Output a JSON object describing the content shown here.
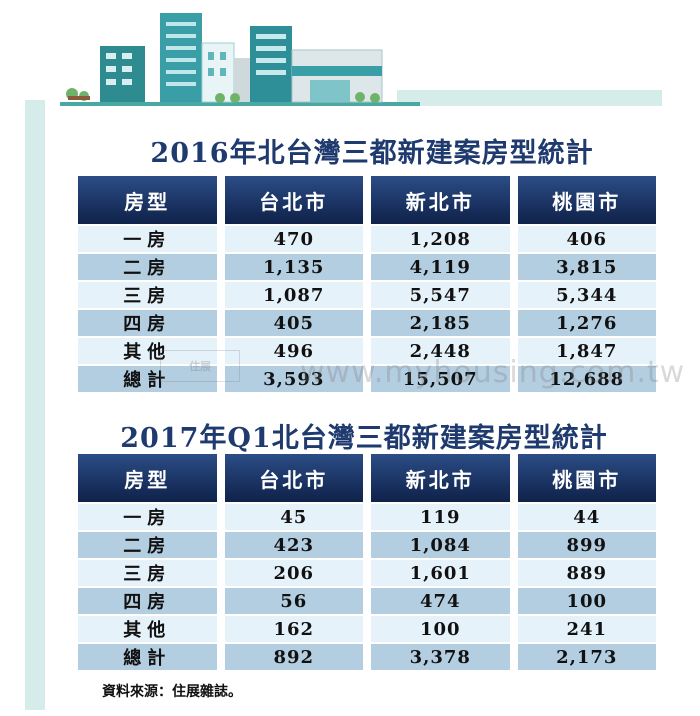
{
  "colors": {
    "header": "#1d3768",
    "title": "#1f3a6e",
    "row_light": "#e6f2fa",
    "row_dark": "#b4cee1",
    "accent_bar": "#d5ecea"
  },
  "table1": {
    "title": "2016年北台灣三都新建案房型統計",
    "headers": [
      "房型",
      "台北市",
      "新北市",
      "桃園市"
    ],
    "rows": [
      [
        "一房",
        "470",
        "1,208",
        "406"
      ],
      [
        "二房",
        "1,135",
        "4,119",
        "3,815"
      ],
      [
        "三房",
        "1,087",
        "5,547",
        "5,344"
      ],
      [
        "四房",
        "405",
        "2,185",
        "1,276"
      ],
      [
        "其他",
        "496",
        "2,448",
        "1,847"
      ],
      [
        "總計",
        "3,593",
        "15,507",
        "12,688"
      ]
    ]
  },
  "table2": {
    "title": "2017年Q1北台灣三都新建案房型統計",
    "headers": [
      "房型",
      "台北市",
      "新北市",
      "桃園市"
    ],
    "rows": [
      [
        "一房",
        "45",
        "119",
        "44"
      ],
      [
        "二房",
        "423",
        "1,084",
        "899"
      ],
      [
        "三房",
        "206",
        "1,601",
        "889"
      ],
      [
        "四房",
        "56",
        "474",
        "100"
      ],
      [
        "其他",
        "162",
        "100",
        "241"
      ],
      [
        "總計",
        "892",
        "3,378",
        "2,173"
      ]
    ]
  },
  "watermark": "www.myhousing.com.tw",
  "watermark_logo": "住展",
  "source": "資料來源：住展雜誌。"
}
